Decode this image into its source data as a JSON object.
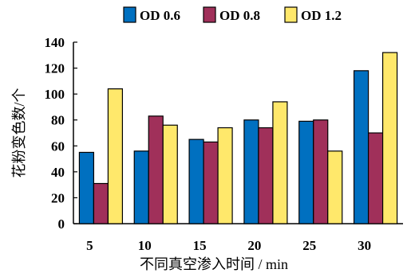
{
  "chart_data": {
    "type": "bar",
    "categories": [
      "5",
      "10",
      "15",
      "20",
      "25",
      "30"
    ],
    "series": [
      {
        "name": "OD 0.6",
        "color": "#0070C0",
        "values": [
          55,
          56,
          65,
          80,
          79,
          118
        ]
      },
      {
        "name": "OD 0.8",
        "color": "#A0305A",
        "values": [
          31,
          83,
          63,
          74,
          80,
          70
        ]
      },
      {
        "name": "OD 1.2",
        "color": "#FFE86B",
        "values": [
          104,
          76,
          74,
          94,
          56,
          132
        ]
      }
    ],
    "xlabel": "不同真空渗入时间 / min",
    "ylabel": "花粉变色数/个",
    "ylim": [
      0,
      140
    ],
    "yticks": [
      0,
      20,
      40,
      60,
      80,
      100,
      120,
      140
    ],
    "legend_position": "top",
    "grid": false
  }
}
